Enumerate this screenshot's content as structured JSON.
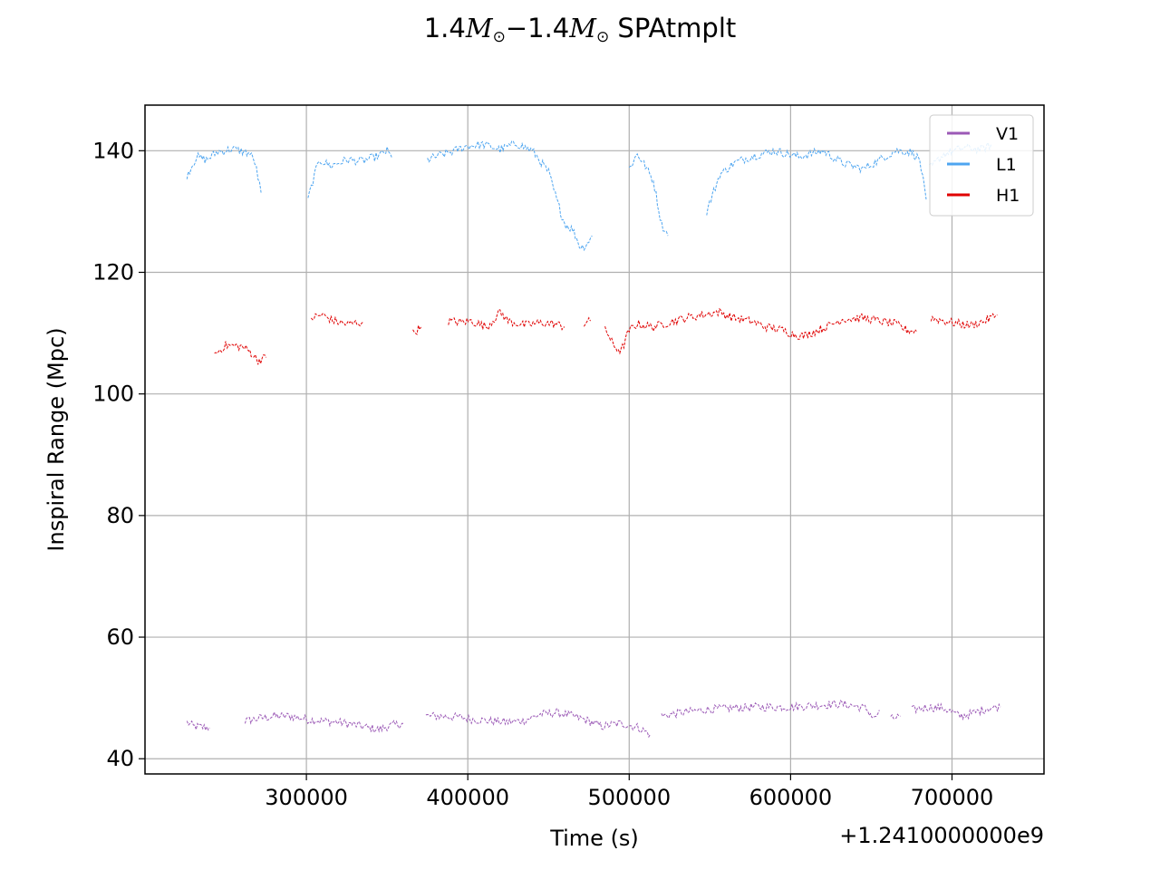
{
  "chart_data": {
    "type": "line",
    "title": {
      "m1": "1.4",
      "m2": "1.4",
      "mass_symbol": "M",
      "sun_symbol": "⊙",
      "minus": "−",
      "suffix": "SPAtmplt"
    },
    "xlabel": "Time (s)",
    "ylabel": "Inspiral Range (Mpc)",
    "x_offset_label": "+1.2410000000e9",
    "xlim": [
      200000,
      757000
    ],
    "ylim": [
      37.5,
      147.5
    ],
    "xticks": [
      300000,
      400000,
      500000,
      600000,
      700000
    ],
    "xtick_labels": [
      "300000",
      "400000",
      "500000",
      "600000",
      "700000"
    ],
    "yticks": [
      40,
      60,
      80,
      100,
      120,
      140
    ],
    "ytick_labels": [
      "40",
      "60",
      "80",
      "100",
      "120",
      "140"
    ],
    "grid": true,
    "legend_position": "top-right",
    "series": [
      {
        "name": "V1",
        "color": "#9b59b6",
        "segments": [
          [
            [
              226000,
              46
            ],
            [
              230000,
              45.3
            ],
            [
              235000,
              45.2
            ],
            [
              240000,
              45.1
            ]
          ],
          [
            [
              262000,
              46.2
            ],
            [
              270000,
              46.6
            ],
            [
              280000,
              47
            ],
            [
              290000,
              47
            ],
            [
              300000,
              46.5
            ],
            [
              310000,
              46.2
            ],
            [
              320000,
              46
            ],
            [
              330000,
              45.6
            ],
            [
              340000,
              45
            ],
            [
              345000,
              44.8
            ],
            [
              350000,
              45.3
            ],
            [
              355000,
              45.6
            ],
            [
              360000,
              45.8
            ]
          ],
          [
            [
              374000,
              47
            ],
            [
              385000,
              47
            ],
            [
              395000,
              46.8
            ],
            [
              405000,
              46.4
            ],
            [
              415000,
              46.2
            ],
            [
              425000,
              46
            ],
            [
              435000,
              46.3
            ],
            [
              445000,
              47.3
            ],
            [
              455000,
              47.6
            ],
            [
              465000,
              47
            ],
            [
              475000,
              46.2
            ],
            [
              483000,
              45.3
            ],
            [
              488000,
              45.6
            ],
            [
              495000,
              45.8
            ],
            [
              505000,
              45.2
            ],
            [
              513000,
              44
            ]
          ],
          [
            [
              520000,
              47
            ],
            [
              530000,
              47.5
            ],
            [
              545000,
              48
            ],
            [
              560000,
              48.3
            ],
            [
              580000,
              48.5
            ],
            [
              600000,
              48.5
            ],
            [
              615000,
              48.8
            ],
            [
              630000,
              49
            ],
            [
              640000,
              48.7
            ],
            [
              647000,
              48.2
            ],
            [
              652000,
              46.5
            ],
            [
              655000,
              48
            ]
          ],
          [
            [
              662000,
              46.5
            ],
            [
              668000,
              47
            ]
          ],
          [
            [
              675000,
              48
            ],
            [
              685000,
              48.5
            ],
            [
              695000,
              48.3
            ],
            [
              705000,
              47
            ],
            [
              712000,
              47.4
            ],
            [
              722000,
              48.3
            ],
            [
              730000,
              48.5
            ]
          ]
        ]
      },
      {
        "name": "L1",
        "color": "#4ea5f0",
        "segments": [
          [
            [
              226000,
              136
            ],
            [
              232000,
              139
            ],
            [
              238000,
              138.5
            ],
            [
              245000,
              139.8
            ],
            [
              255000,
              140.3
            ],
            [
              265000,
              139.5
            ],
            [
              268000,
              138.2
            ],
            [
              272000,
              133
            ]
          ],
          [
            [
              301000,
              132
            ],
            [
              304000,
              135
            ],
            [
              308000,
              138.5
            ],
            [
              315000,
              137.5
            ],
            [
              325000,
              138.5
            ],
            [
              335000,
              138.3
            ],
            [
              345000,
              139.2
            ],
            [
              350000,
              140
            ],
            [
              353000,
              138.8
            ]
          ],
          [
            [
              375000,
              138.5
            ],
            [
              380000,
              139
            ],
            [
              392000,
              140
            ],
            [
              400000,
              140.8
            ],
            [
              410000,
              141
            ],
            [
              420000,
              140.2
            ],
            [
              430000,
              141.2
            ],
            [
              440000,
              140
            ],
            [
              450000,
              136.5
            ],
            [
              455000,
              132
            ],
            [
              460000,
              128
            ],
            [
              465000,
              127
            ],
            [
              470000,
              124
            ],
            [
              473000,
              124.5
            ],
            [
              477000,
              126
            ]
          ],
          [
            [
              500000,
              137
            ],
            [
              505000,
              139.5
            ],
            [
              510000,
              137.5
            ],
            [
              515000,
              135
            ],
            [
              520000,
              128
            ],
            [
              524000,
              126
            ]
          ],
          [
            [
              548000,
              130
            ],
            [
              556000,
              136
            ],
            [
              565000,
              138
            ],
            [
              575000,
              139
            ],
            [
              590000,
              140
            ],
            [
              605000,
              139
            ],
            [
              620000,
              140
            ],
            [
              632000,
              138
            ],
            [
              645000,
              137
            ],
            [
              655000,
              138.5
            ],
            [
              665000,
              140
            ],
            [
              675000,
              139.8
            ],
            [
              680000,
              138.5
            ],
            [
              684000,
              132
            ]
          ],
          [
            [
              686000,
              137
            ],
            [
              695000,
              139.5
            ],
            [
              708000,
              140.5
            ],
            [
              718000,
              140.2
            ],
            [
              725000,
              141
            ]
          ]
        ]
      },
      {
        "name": "H1",
        "color": "#e00000",
        "segments": [
          [
            [
              243000,
              106.5
            ],
            [
              250000,
              108
            ],
            [
              260000,
              107.8
            ],
            [
              265000,
              107
            ],
            [
              270000,
              105.5
            ],
            [
              275000,
              106
            ]
          ],
          [
            [
              303000,
              112.5
            ],
            [
              310000,
              113
            ],
            [
              317000,
              112
            ],
            [
              325000,
              111.5
            ],
            [
              335000,
              111.8
            ]
          ],
          [
            [
              366000,
              110
            ],
            [
              371000,
              111
            ]
          ],
          [
            [
              388000,
              112
            ],
            [
              396000,
              111.8
            ],
            [
              402000,
              112
            ],
            [
              412000,
              111
            ],
            [
              420000,
              113.5
            ],
            [
              425000,
              112
            ],
            [
              435000,
              111.3
            ],
            [
              445000,
              111.7
            ],
            [
              455000,
              111.5
            ],
            [
              460000,
              111
            ]
          ],
          [
            [
              472000,
              111.5
            ],
            [
              476000,
              112
            ]
          ],
          [
            [
              485000,
              111
            ],
            [
              490000,
              108
            ],
            [
              495000,
              107
            ],
            [
              500000,
              110.5
            ],
            [
              505000,
              111.5
            ],
            [
              515000,
              111
            ],
            [
              525000,
              111.8
            ],
            [
              535000,
              112.5
            ],
            [
              545000,
              113
            ],
            [
              555000,
              113.5
            ],
            [
              565000,
              112.5
            ],
            [
              575000,
              112
            ],
            [
              585000,
              111
            ],
            [
              595000,
              110.5
            ],
            [
              602000,
              109.8
            ],
            [
              608000,
              109.5
            ],
            [
              615000,
              110.3
            ],
            [
              622000,
              111
            ],
            [
              632000,
              112.3
            ],
            [
              645000,
              112.5
            ],
            [
              655000,
              112
            ],
            [
              665000,
              111.5
            ],
            [
              672000,
              110.5
            ],
            [
              678000,
              110.3
            ]
          ],
          [
            [
              687000,
              112.5
            ],
            [
              695000,
              112
            ],
            [
              705000,
              111.5
            ],
            [
              712000,
              111.3
            ],
            [
              720000,
              112
            ],
            [
              728000,
              113
            ]
          ]
        ]
      }
    ],
    "legend_order": [
      "V1",
      "L1",
      "H1"
    ]
  }
}
